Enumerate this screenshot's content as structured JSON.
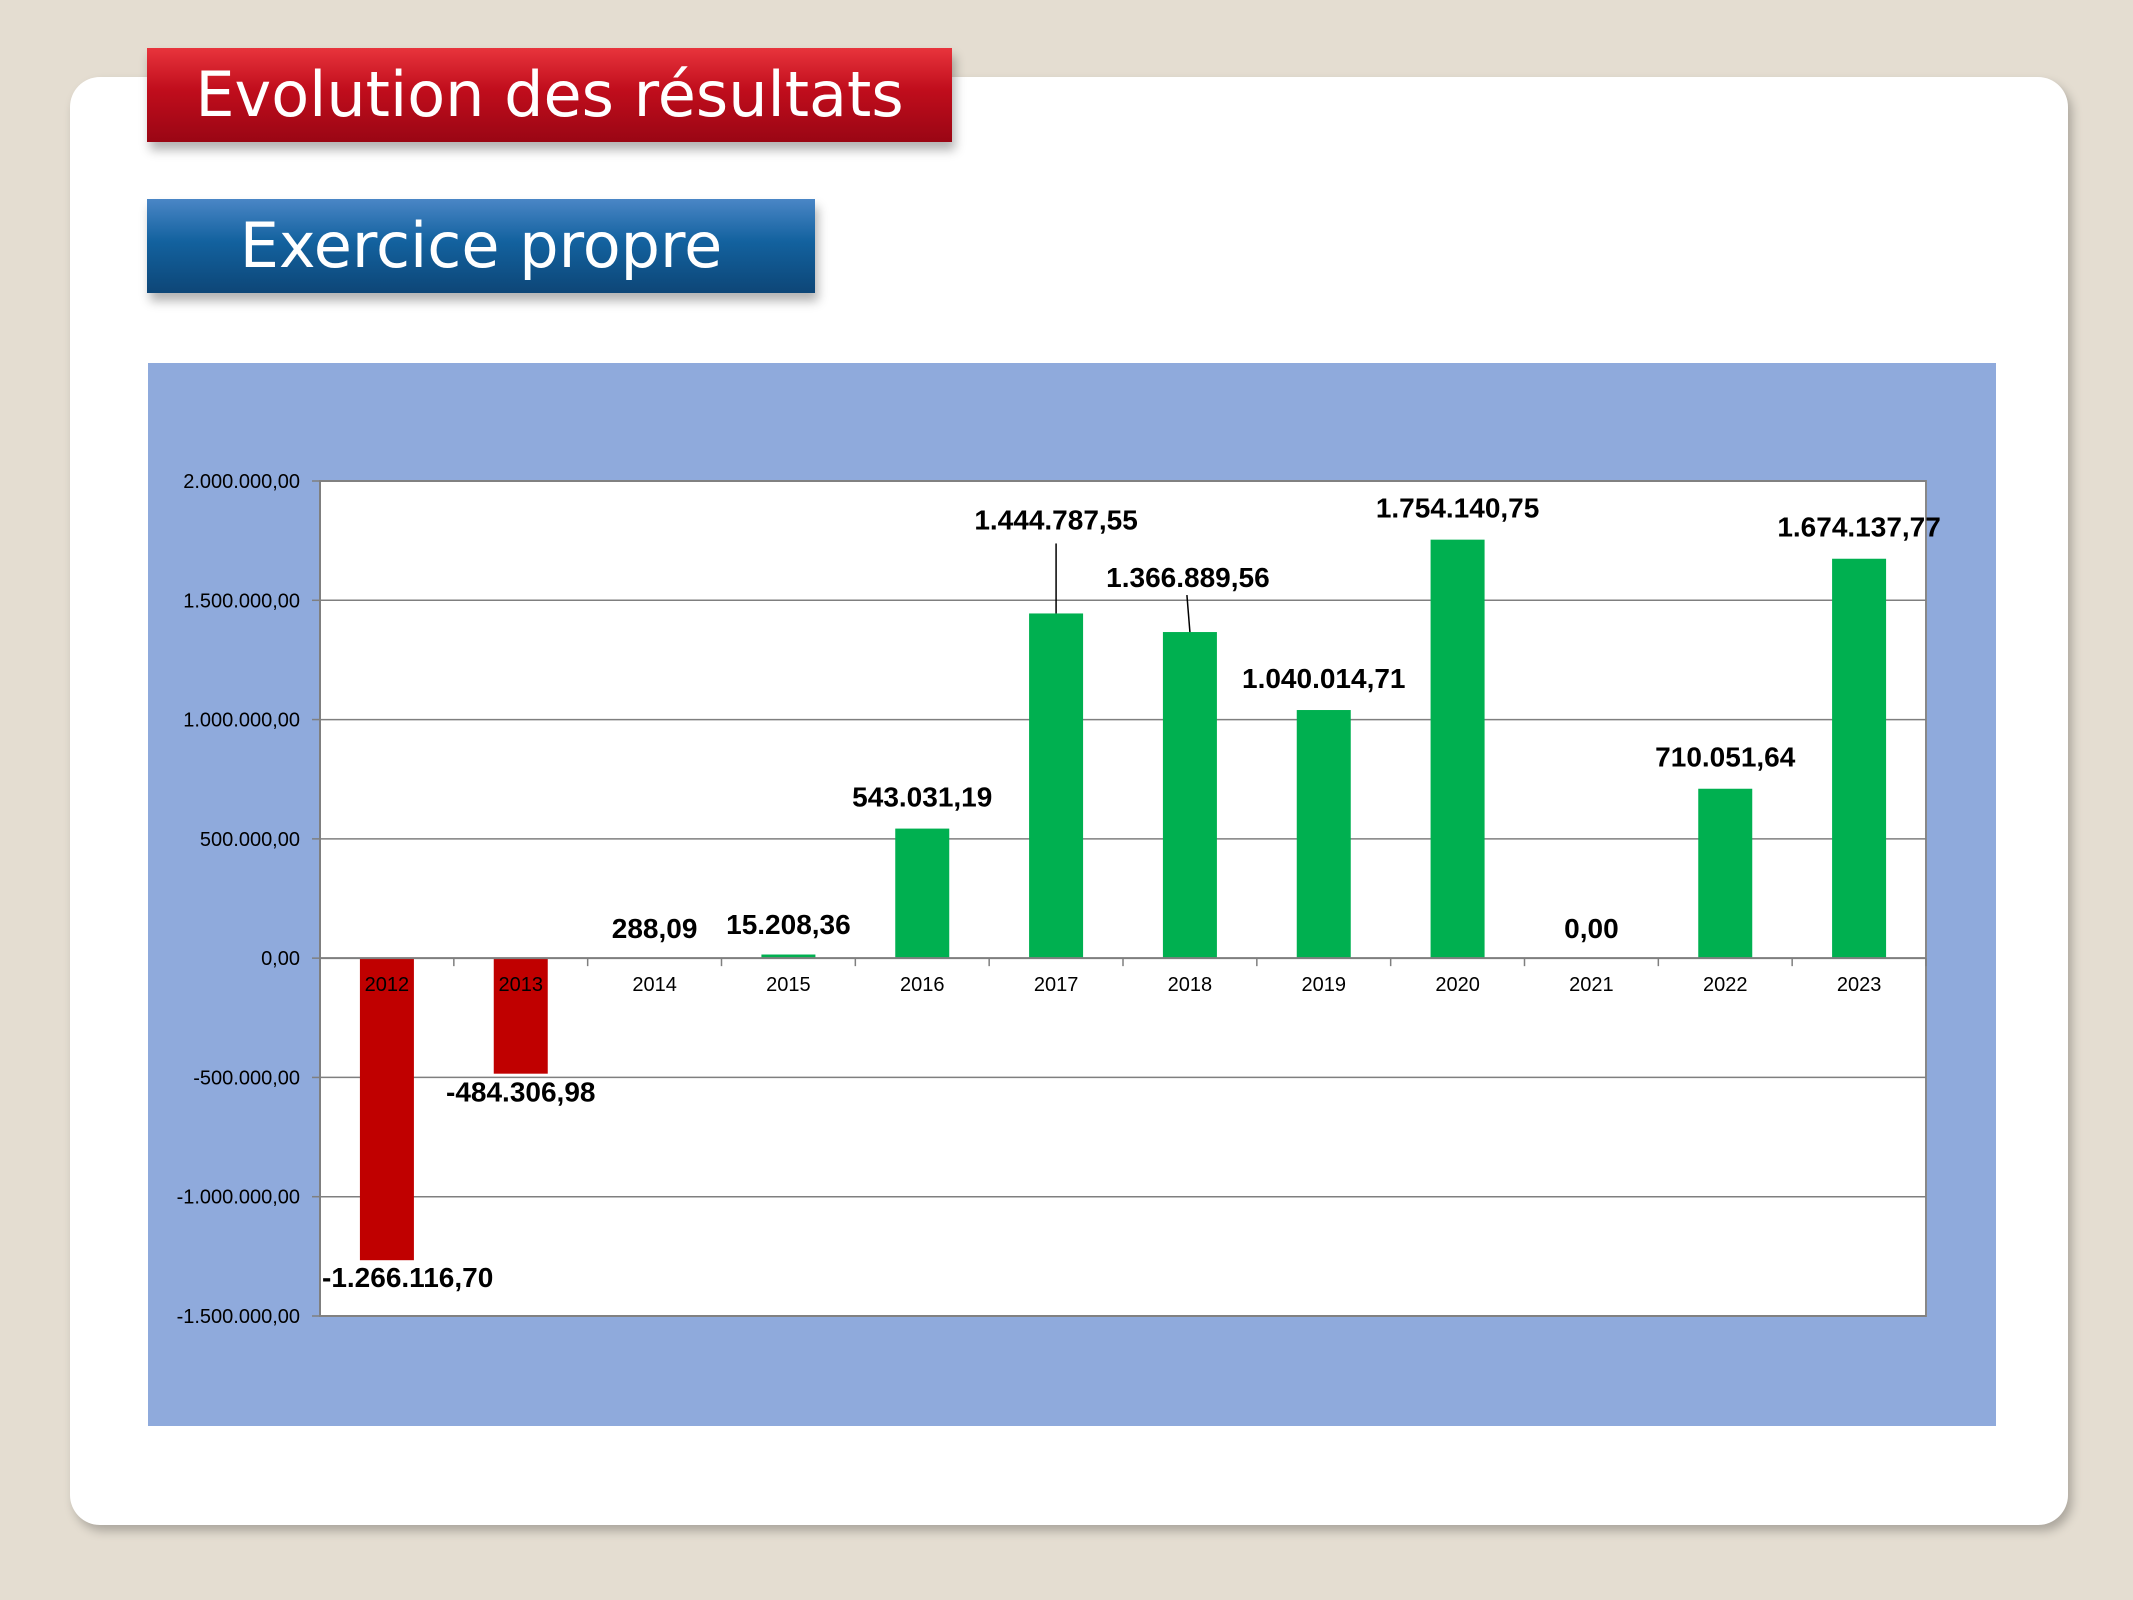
{
  "header": {
    "title": "Evolution des résultats",
    "subtitle": "Exercice propre"
  },
  "chart_data": {
    "type": "bar",
    "categories": [
      "2012",
      "2013",
      "2014",
      "2015",
      "2016",
      "2017",
      "2018",
      "2019",
      "2020",
      "2021",
      "2022",
      "2023"
    ],
    "values": [
      -1266116.7,
      -484306.98,
      288.09,
      15208.36,
      543031.19,
      1444787.55,
      1366889.56,
      1040014.71,
      1754140.75,
      0.0,
      710051.64,
      1674137.77
    ],
    "data_labels": [
      "-1.266.116,70",
      "-484.306,98",
      "288,09",
      "15.208,36",
      "543.031,19",
      "1.444.787,55",
      "1.366.889,56",
      "1.040.014,71",
      "1.754.140,75",
      "0,00",
      "710.051,64",
      "1.674.137,77"
    ],
    "ylim": [
      -1500000,
      2000000
    ],
    "y_ticks": [
      2000000,
      1500000,
      1000000,
      500000,
      0,
      -500000,
      -1000000,
      -1500000
    ],
    "y_tick_labels": [
      "2.000.000,00",
      "1.500.000,00",
      "1.000.000,00",
      "500.000,00",
      "0,00",
      "-500.000,00",
      "-1.000.000,00",
      "-1.500.000,00"
    ],
    "grid": true,
    "colors": {
      "positive": "#00b050",
      "negative": "#c00000",
      "plot_bg": "#8faadc"
    }
  }
}
